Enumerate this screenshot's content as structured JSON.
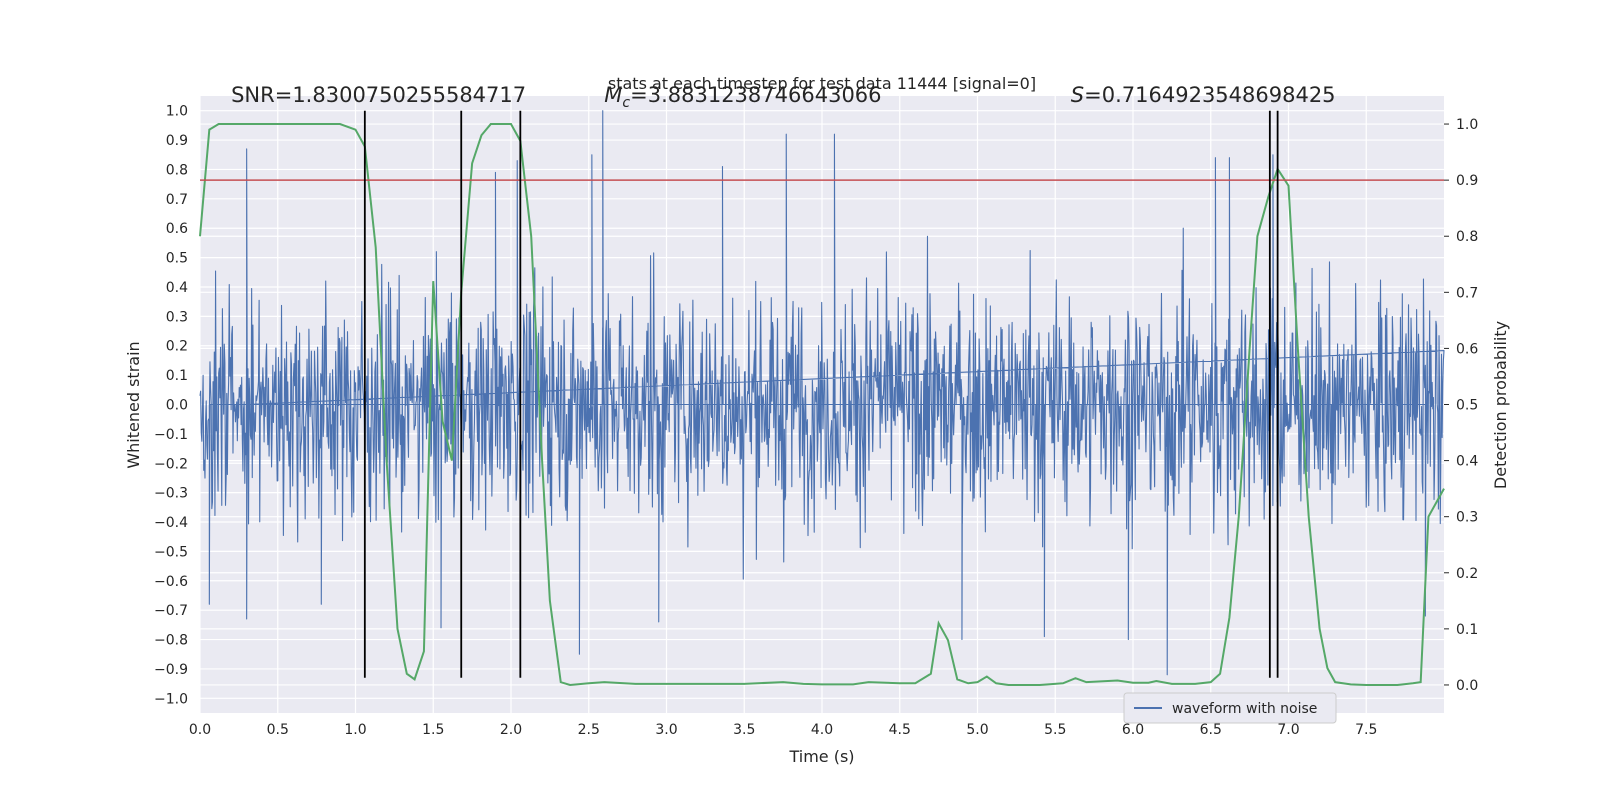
{
  "chart_data": {
    "type": "line",
    "title": "stats at each timestep for test data 11444 [signal=0]",
    "xlabel": "Time (s)",
    "ylabel": "Whitened strain",
    "y2label": "Detection probability",
    "xlim": [
      0.0,
      8.0
    ],
    "ylim": [
      -1.05,
      1.05
    ],
    "y2lim": [
      -0.05,
      1.05
    ],
    "x_ticks": [
      0.0,
      0.5,
      1.0,
      1.5,
      2.0,
      2.5,
      3.0,
      3.5,
      4.0,
      4.5,
      5.0,
      5.5,
      6.0,
      6.5,
      7.0,
      7.5
    ],
    "y_ticks": [
      -1.0,
      -0.9,
      -0.8,
      -0.7,
      -0.6,
      -0.5,
      -0.4,
      -0.3,
      -0.2,
      -0.1,
      0.0,
      0.1,
      0.2,
      0.3,
      0.4,
      0.5,
      0.6,
      0.7,
      0.8,
      0.9,
      1.0
    ],
    "y2_ticks": [
      0.0,
      0.1,
      0.2,
      0.3,
      0.4,
      0.5,
      0.6,
      0.7,
      0.8,
      0.9,
      1.0
    ],
    "grid": true,
    "legend_position": "lower-right",
    "annotations": [
      {
        "id": "snr",
        "text": "SNR=1.8300750255584717",
        "x": 0.2,
        "y": 1.03
      },
      {
        "id": "mc",
        "prefix": "M",
        "subscript": "c",
        "text": "=3.8831238746643066",
        "x": 2.6,
        "y": 1.03
      },
      {
        "id": "s",
        "prefix": "S",
        "text": "=0.7164923548698425",
        "x": 5.6,
        "y": 1.03
      }
    ],
    "threshold": {
      "y2": 0.9,
      "color": "#c44e52"
    },
    "vertical_markers": {
      "x": [
        1.06,
        1.68,
        2.06,
        6.88,
        6.93
      ],
      "y_from": -0.93,
      "y_to": 1.0,
      "color": "#000000"
    },
    "series": [
      {
        "name": "waveform with noise",
        "axis": "left",
        "color": "#4c72b0",
        "kind": "noise",
        "duration": 8.0,
        "samples": 2000,
        "typical_amplitude": 0.33,
        "spikes": [
          {
            "x": 0.3,
            "y": 0.87
          },
          {
            "x": 0.3,
            "y": -0.73
          },
          {
            "x": 0.06,
            "y": -0.68
          },
          {
            "x": 0.78,
            "y": -0.68
          },
          {
            "x": 1.52,
            "y": 0.52
          },
          {
            "x": 1.55,
            "y": -0.76
          },
          {
            "x": 1.9,
            "y": 0.79
          },
          {
            "x": 2.04,
            "y": 0.83
          },
          {
            "x": 2.44,
            "y": -0.85
          },
          {
            "x": 2.59,
            "y": 1.0
          },
          {
            "x": 2.52,
            "y": 0.85
          },
          {
            "x": 2.95,
            "y": -0.74
          },
          {
            "x": 3.36,
            "y": 0.81
          },
          {
            "x": 3.77,
            "y": 0.92
          },
          {
            "x": 4.08,
            "y": 0.92
          },
          {
            "x": 4.9,
            "y": -0.8
          },
          {
            "x": 5.43,
            "y": -0.79
          },
          {
            "x": 5.97,
            "y": -0.8
          },
          {
            "x": 6.22,
            "y": -0.92
          },
          {
            "x": 6.53,
            "y": 0.84
          },
          {
            "x": 6.62,
            "y": 0.84
          },
          {
            "x": 6.9,
            "y": 0.85
          },
          {
            "x": 7.88,
            "y": -0.72
          }
        ]
      },
      {
        "name": "",
        "axis": "right",
        "color": "#55a868",
        "x": [
          0.0,
          0.06,
          0.12,
          0.2,
          0.3,
          0.5,
          0.7,
          0.9,
          1.0,
          1.06,
          1.13,
          1.2,
          1.27,
          1.33,
          1.38,
          1.44,
          1.5,
          1.56,
          1.62,
          1.68,
          1.75,
          1.81,
          1.87,
          1.93,
          2.0,
          2.06,
          2.13,
          2.2,
          2.25,
          2.32,
          2.38,
          2.5,
          2.6,
          2.8,
          3.0,
          3.5,
          3.75,
          3.88,
          4.0,
          4.2,
          4.3,
          4.5,
          4.6,
          4.7,
          4.75,
          4.81,
          4.87,
          4.94,
          5.0,
          5.06,
          5.12,
          5.2,
          5.4,
          5.55,
          5.63,
          5.7,
          5.9,
          6.0,
          6.1,
          6.15,
          6.25,
          6.4,
          6.5,
          6.56,
          6.62,
          6.68,
          6.75,
          6.8,
          6.87,
          6.93,
          7.0,
          7.06,
          7.13,
          7.2,
          7.25,
          7.3,
          7.4,
          7.5,
          7.6,
          7.7,
          7.8,
          7.85,
          7.9,
          8.0
        ],
        "values": [
          0.8,
          0.99,
          1.0,
          1.0,
          1.0,
          1.0,
          1.0,
          1.0,
          0.99,
          0.96,
          0.78,
          0.4,
          0.1,
          0.02,
          0.01,
          0.06,
          0.72,
          0.47,
          0.4,
          0.7,
          0.93,
          0.98,
          1.0,
          1.0,
          1.0,
          0.97,
          0.8,
          0.4,
          0.15,
          0.005,
          0.0,
          0.003,
          0.005,
          0.002,
          0.002,
          0.002,
          0.005,
          0.002,
          0.001,
          0.001,
          0.005,
          0.003,
          0.003,
          0.02,
          0.11,
          0.08,
          0.01,
          0.003,
          0.005,
          0.015,
          0.003,
          0.0,
          0.0,
          0.003,
          0.012,
          0.005,
          0.008,
          0.004,
          0.004,
          0.007,
          0.002,
          0.002,
          0.005,
          0.02,
          0.12,
          0.3,
          0.6,
          0.8,
          0.87,
          0.92,
          0.89,
          0.6,
          0.3,
          0.1,
          0.03,
          0.005,
          0.001,
          0.0,
          0.0,
          0.0,
          0.003,
          0.005,
          0.3,
          0.35
        ]
      }
    ]
  }
}
